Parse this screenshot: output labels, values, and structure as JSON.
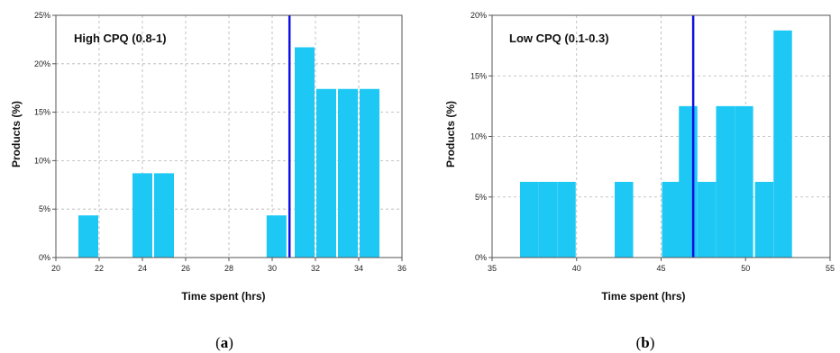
{
  "chart_data": [
    {
      "type": "bar",
      "title": "High CPQ (0.8-1)",
      "xlabel": "Time spent (hrs)",
      "ylabel": "Products (%)",
      "caption_open": "(",
      "caption_letter": "a",
      "caption_close": ")",
      "xlim": [
        20,
        36
      ],
      "ylim": [
        0,
        25
      ],
      "xticks": [
        20,
        22,
        24,
        26,
        28,
        30,
        32,
        34,
        36
      ],
      "yticks": [
        0,
        5,
        10,
        15,
        20,
        25
      ],
      "yticks_labels": [
        "0%",
        "5%",
        "10%",
        "15%",
        "20%",
        "25%"
      ],
      "bin_width": 1,
      "bar_color": "#1ec8f5",
      "reference_line": {
        "x": 30.8,
        "color": "#1010e0"
      },
      "grid": true,
      "bars": [
        {
          "x": 21.5,
          "value": 4.35
        },
        {
          "x": 24.0,
          "value": 8.7
        },
        {
          "x": 25.0,
          "value": 8.7
        },
        {
          "x": 30.2,
          "value": 4.35
        },
        {
          "x": 31.5,
          "value": 21.7
        },
        {
          "x": 32.5,
          "value": 17.4
        },
        {
          "x": 33.5,
          "value": 17.4
        },
        {
          "x": 34.5,
          "value": 17.4
        }
      ]
    },
    {
      "type": "bar",
      "title": "Low CPQ (0.1-0.3)",
      "xlabel": "Time spent (hrs)",
      "ylabel": "Products (%)",
      "caption_open": "(",
      "caption_letter": "b",
      "caption_close": ")",
      "xlim": [
        35,
        55
      ],
      "ylim": [
        0,
        20
      ],
      "xticks": [
        35,
        40,
        45,
        50,
        55
      ],
      "yticks": [
        0,
        5,
        10,
        15,
        20
      ],
      "yticks_labels": [
        "0%",
        "5%",
        "10%",
        "15%",
        "20%"
      ],
      "bin_width": 1.2,
      "bar_color": "#1ec8f5",
      "reference_line": {
        "x": 46.9,
        "color": "#1010e0"
      },
      "grid": true,
      "bars": [
        {
          "x": 37.2,
          "value": 6.25
        },
        {
          "x": 38.3,
          "value": 6.25
        },
        {
          "x": 39.4,
          "value": 6.25
        },
        {
          "x": 42.8,
          "value": 6.25
        },
        {
          "x": 45.6,
          "value": 6.25
        },
        {
          "x": 46.6,
          "value": 12.5
        },
        {
          "x": 47.7,
          "value": 6.25
        },
        {
          "x": 48.8,
          "value": 12.5
        },
        {
          "x": 49.9,
          "value": 12.5
        },
        {
          "x": 51.1,
          "value": 6.25
        },
        {
          "x": 52.2,
          "value": 18.75
        }
      ]
    }
  ]
}
